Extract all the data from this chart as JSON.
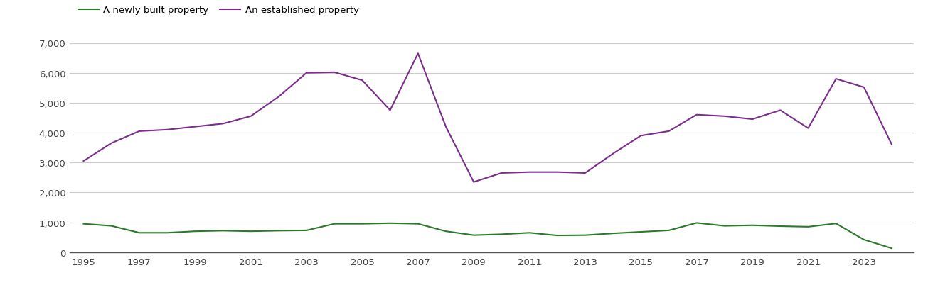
{
  "years": [
    1995,
    1996,
    1997,
    1998,
    1999,
    2000,
    2001,
    2002,
    2003,
    2004,
    2005,
    2006,
    2007,
    2008,
    2009,
    2010,
    2011,
    2012,
    2013,
    2014,
    2015,
    2016,
    2017,
    2018,
    2019,
    2020,
    2021,
    2022,
    2023,
    2024
  ],
  "new_build": [
    950,
    880,
    650,
    650,
    700,
    720,
    700,
    720,
    730,
    950,
    950,
    970,
    950,
    700,
    570,
    600,
    650,
    560,
    570,
    630,
    680,
    730,
    980,
    880,
    900,
    870,
    850,
    960,
    420,
    130
  ],
  "established": [
    3050,
    3650,
    4050,
    4100,
    4200,
    4300,
    4550,
    5200,
    6000,
    6020,
    5750,
    4750,
    6650,
    4200,
    2350,
    2650,
    2680,
    2680,
    2650,
    3300,
    3900,
    4050,
    4600,
    4550,
    4450,
    4750,
    4150,
    5800,
    5520,
    3600
  ],
  "new_build_color": "#2a7a2a",
  "established_color": "#7b2d8b",
  "new_build_label": "A newly built property",
  "established_label": "An established property",
  "ylim": [
    0,
    7000
  ],
  "yticks": [
    0,
    1000,
    2000,
    3000,
    4000,
    5000,
    6000,
    7000
  ],
  "xticks": [
    1995,
    1997,
    1999,
    2001,
    2003,
    2005,
    2007,
    2009,
    2011,
    2013,
    2015,
    2017,
    2019,
    2021,
    2023
  ],
  "background_color": "#ffffff",
  "grid_color": "#cccccc",
  "line_width": 1.5,
  "xlim_left": 1994.5,
  "xlim_right": 2024.8
}
